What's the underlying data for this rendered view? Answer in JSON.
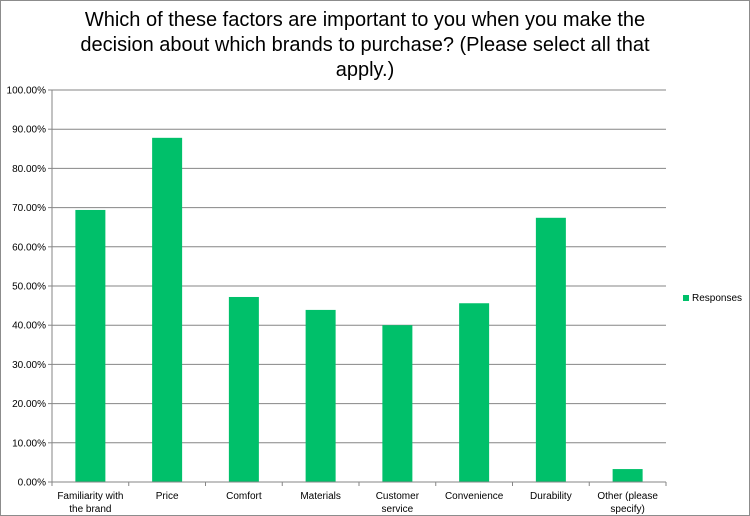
{
  "chart_data": {
    "type": "bar",
    "title": "Which of these factors are important to you when you make the decision about which brands to purchase? (Please select all that apply.)",
    "categories": [
      [
        "Familiarity with",
        "the brand"
      ],
      [
        "Price"
      ],
      [
        "Comfort"
      ],
      [
        "Materials"
      ],
      [
        "Customer",
        "service"
      ],
      [
        "Convenience"
      ],
      [
        "Durability"
      ],
      [
        "Other (please",
        "specify)"
      ]
    ],
    "series": [
      {
        "name": "Responses",
        "color": "#00c06a",
        "values": [
          69.4,
          87.8,
          47.2,
          43.9,
          40.0,
          45.6,
          67.4,
          3.3
        ]
      }
    ],
    "yticks": [
      "0.00%",
      "10.00%",
      "20.00%",
      "30.00%",
      "40.00%",
      "50.00%",
      "60.00%",
      "70.00%",
      "80.00%",
      "90.00%",
      "100.00%"
    ],
    "ylim": [
      0,
      100
    ],
    "grid": true,
    "legend": "right"
  }
}
